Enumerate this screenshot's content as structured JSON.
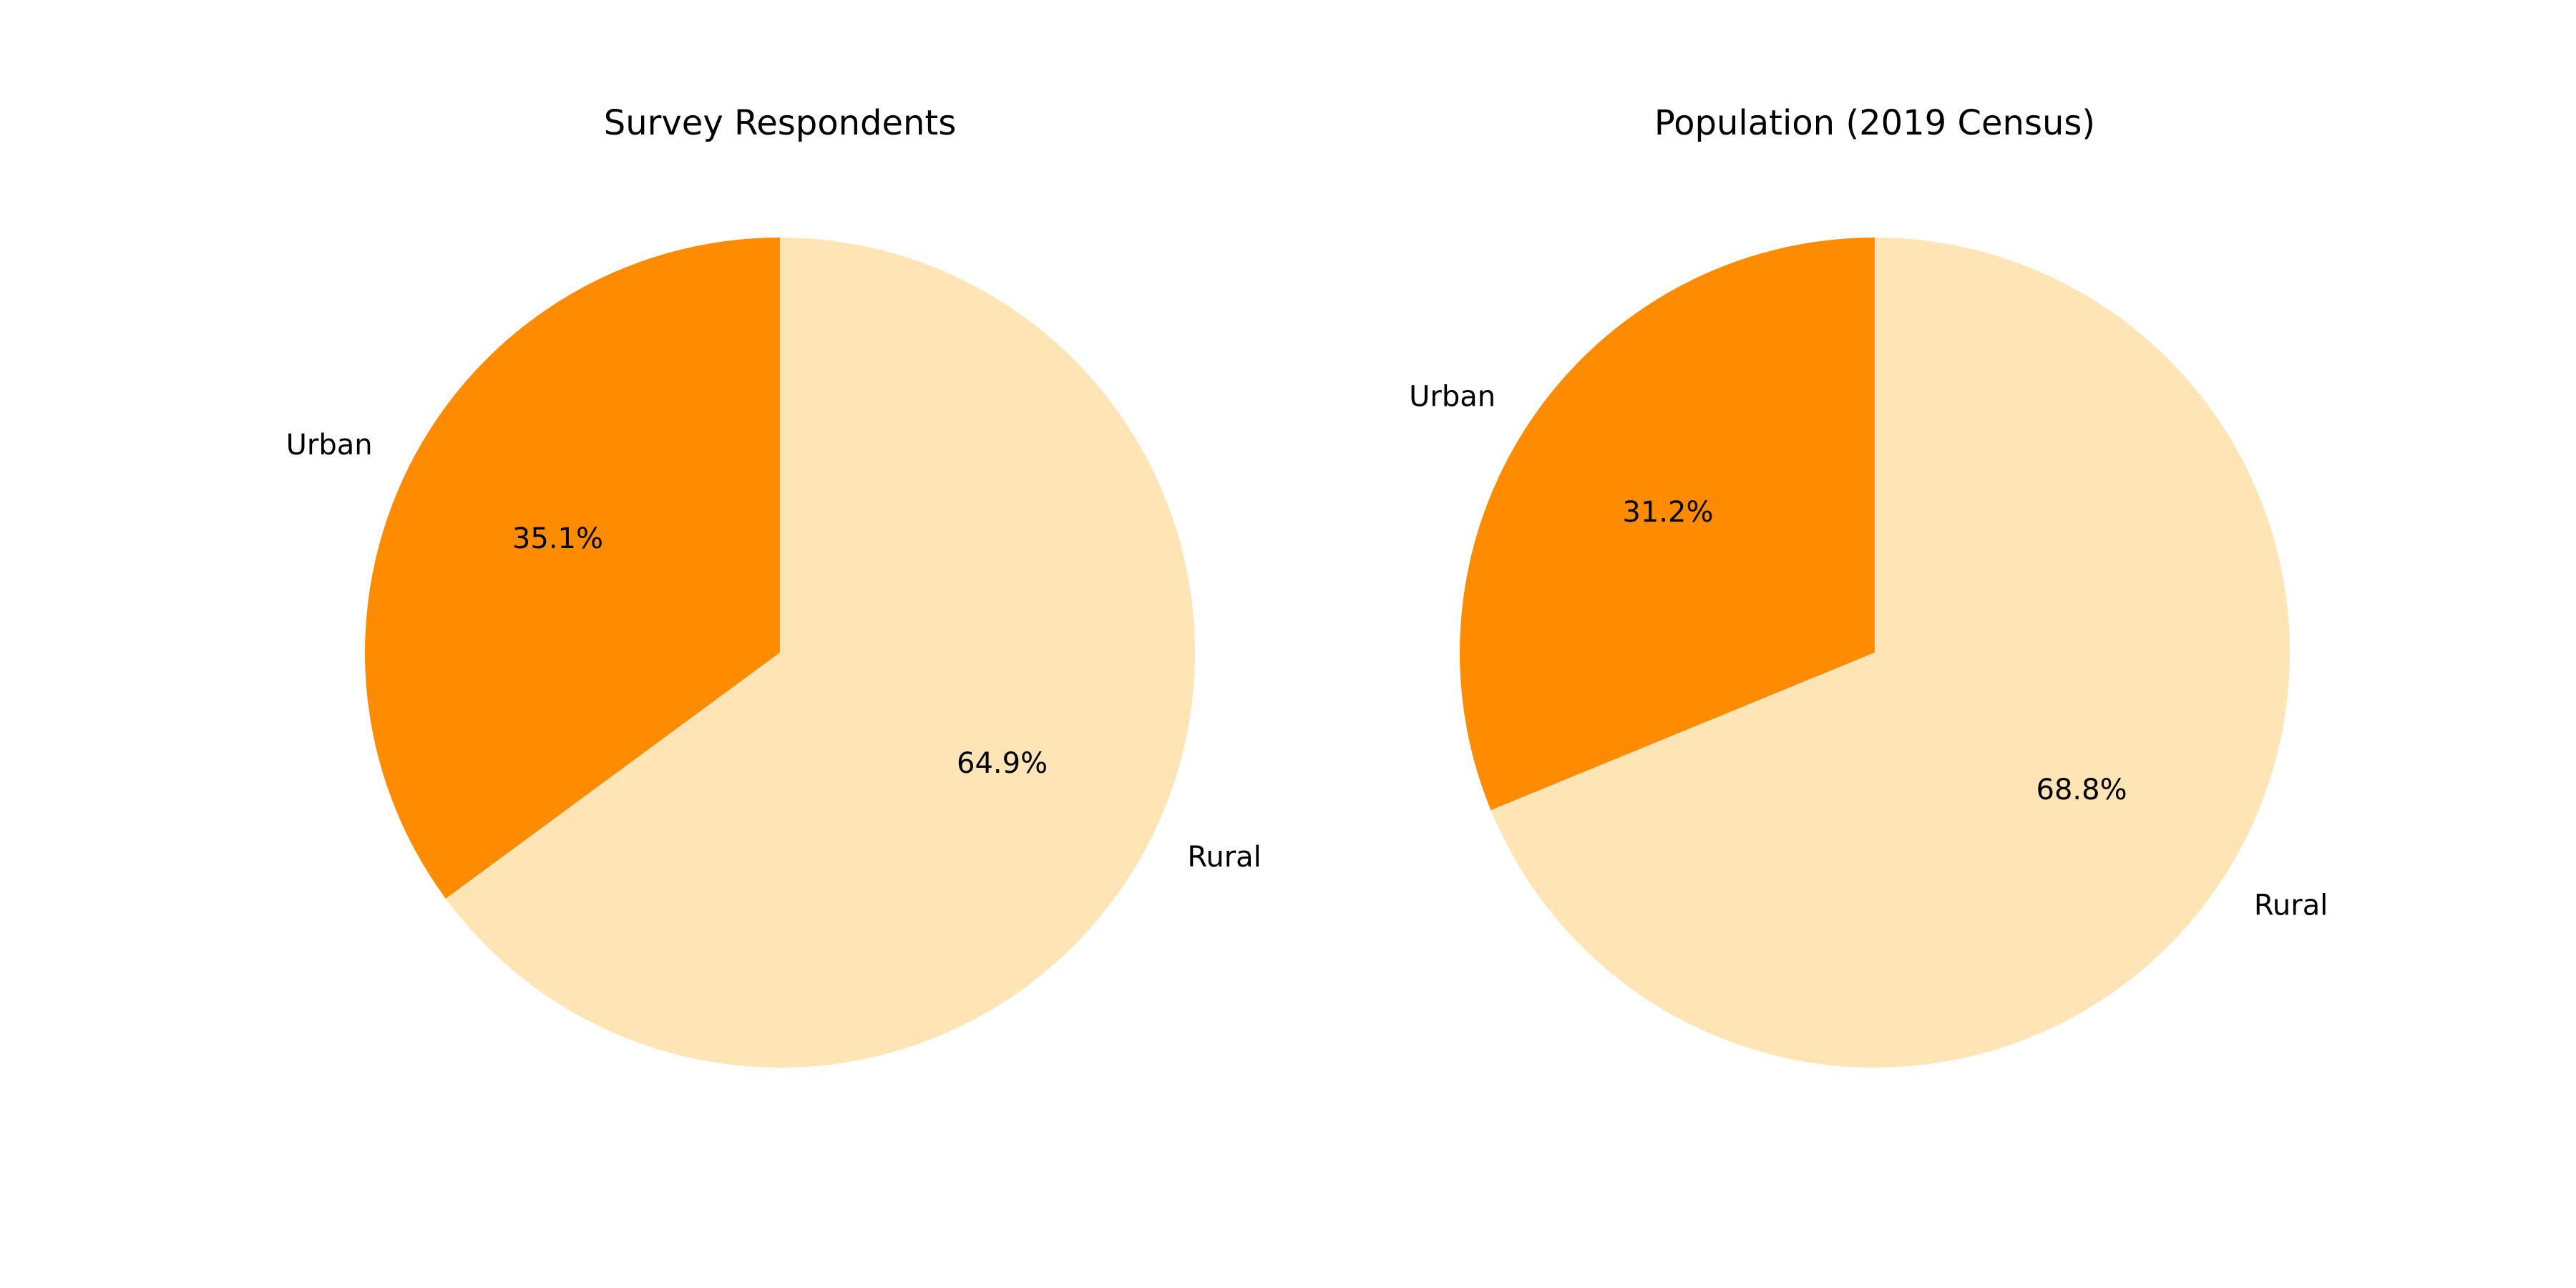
{
  "chart_data": [
    {
      "type": "pie",
      "title": "Survey Respondents",
      "categories": [
        "Urban",
        "Rural"
      ],
      "values": [
        35.1,
        64.9
      ],
      "percent_labels": [
        "35.1%",
        "64.9%"
      ],
      "colors": [
        "#ff8c00",
        "#ffe4b5"
      ],
      "start_angle": "top, counter-clockwise",
      "legend": "none"
    },
    {
      "type": "pie",
      "title": "Population (2019 Census)",
      "categories": [
        "Urban",
        "Rural"
      ],
      "values": [
        31.2,
        68.8
      ],
      "percent_labels": [
        "31.2%",
        "68.8%"
      ],
      "colors": [
        "#ff8c00",
        "#ffe4b5"
      ],
      "start_angle": "top, counter-clockwise",
      "legend": "none"
    }
  ]
}
